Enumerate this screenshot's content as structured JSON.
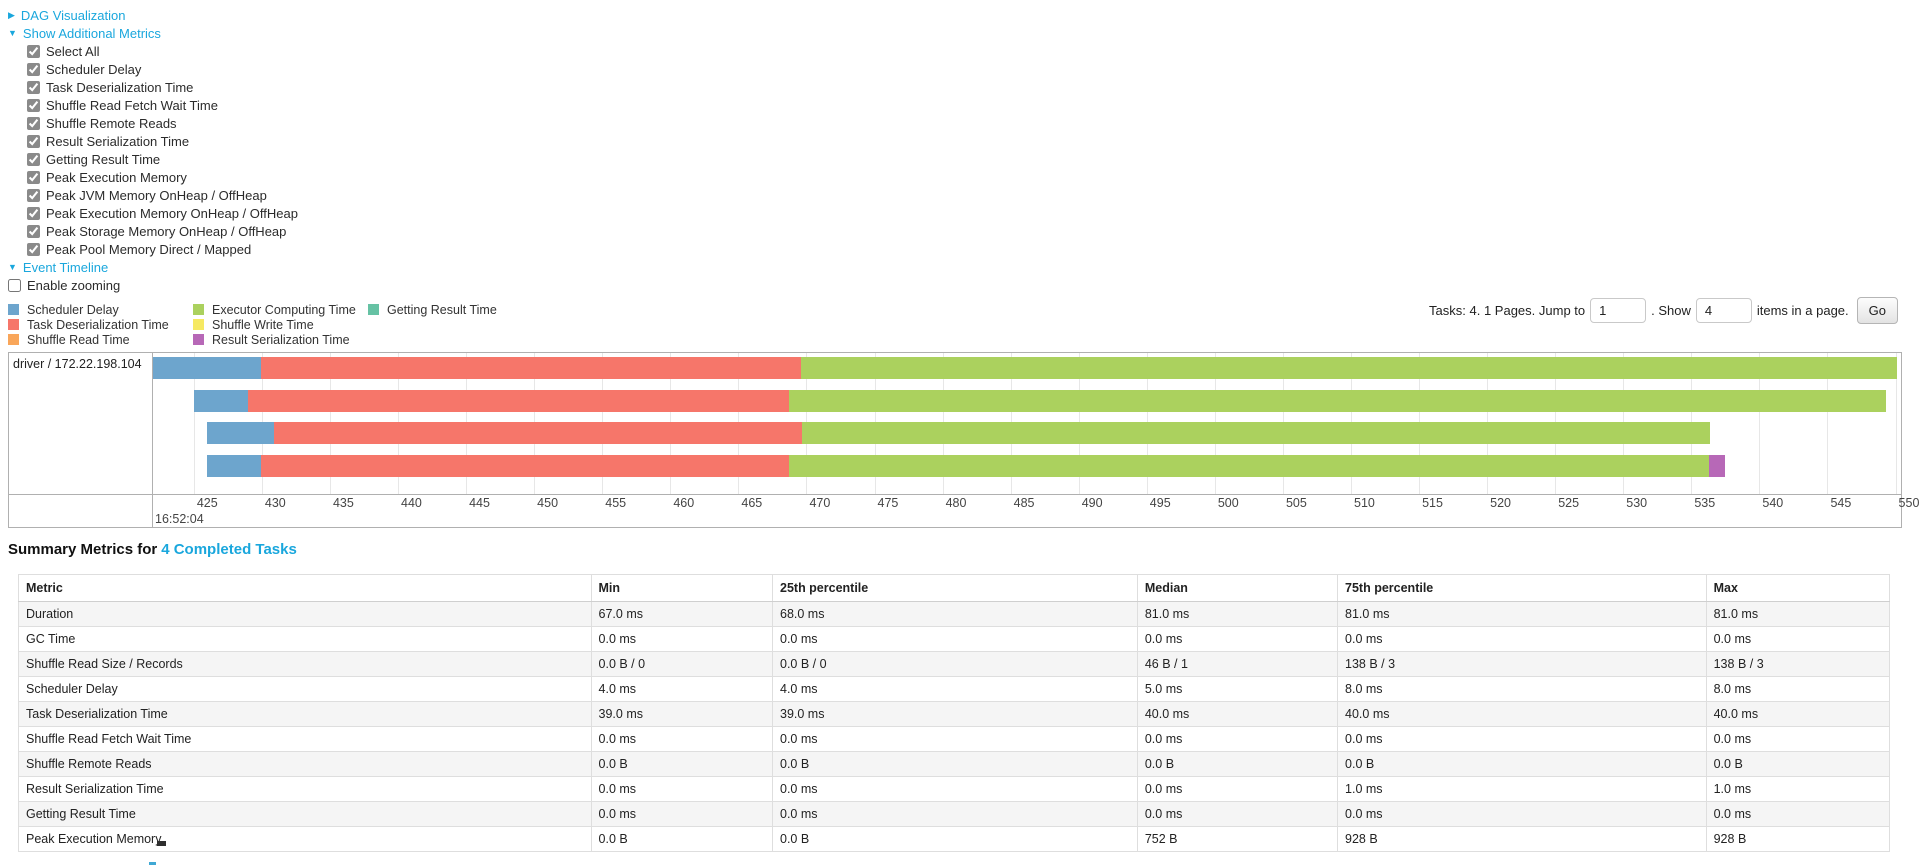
{
  "theme": {
    "link_color": "#1aa7dd",
    "text_color": "#222222",
    "stripe_color": "#f5f5f5",
    "border_color": "#b0b0b0"
  },
  "controls": {
    "dag_link": {
      "label": "DAG Visualization",
      "arrow": "▶",
      "state": "collapsed"
    },
    "metrics_link": {
      "label": "Show Additional Metrics",
      "arrow": "▼",
      "state": "expanded"
    },
    "metric_checkboxes": [
      "Select All",
      "Scheduler Delay",
      "Task Deserialization Time",
      "Shuffle Read Fetch Wait Time",
      "Shuffle Remote Reads",
      "Result Serialization Time",
      "Getting Result Time",
      "Peak Execution Memory",
      "Peak JVM Memory OnHeap / OffHeap",
      "Peak Execution Memory OnHeap / OffHeap",
      "Peak Storage Memory OnHeap / OffHeap",
      "Peak Pool Memory Direct / Mapped"
    ],
    "metric_checkboxes_checked": true,
    "timeline_link": {
      "label": "Event Timeline",
      "arrow": "▼",
      "state": "expanded"
    },
    "enable_zooming": {
      "label": "Enable zooming",
      "checked": false
    }
  },
  "legend": {
    "columns": [
      {
        "items": [
          {
            "key": "scheduler_delay",
            "label": "Scheduler Delay"
          },
          {
            "key": "task_deserialization",
            "label": "Task Deserialization Time"
          },
          {
            "key": "shuffle_read",
            "label": "Shuffle Read Time"
          }
        ]
      },
      {
        "items": [
          {
            "key": "executor_computing",
            "label": "Executor Computing Time"
          },
          {
            "key": "shuffle_write",
            "label": "Shuffle Write Time"
          },
          {
            "key": "result_serialization",
            "label": "Result Serialization Time"
          }
        ]
      },
      {
        "items": [
          {
            "key": "getting_result",
            "label": "Getting Result Time"
          }
        ]
      }
    ]
  },
  "pagination": {
    "summary": "Tasks: 4. 1 Pages. Jump to",
    "jump_value": "1",
    "mid": ". Show",
    "show_value": "4",
    "suffix": "items in a page.",
    "go_label": "Go"
  },
  "chart_data": {
    "type": "timeline",
    "group_label": "driver / 172.22.198.104",
    "x_axis": {
      "domain": [
        422,
        550.4
      ],
      "tick_start": 425,
      "tick_end": 550,
      "tick_step": 5,
      "time_label": "16:52:04",
      "units": "ms within second shown"
    },
    "colors": {
      "scheduler_delay": "#6da5cd",
      "task_deserialization": "#f6766a",
      "shuffle_read": "#f9a65a",
      "executor_computing": "#abd15e",
      "shuffle_write": "#f6e962",
      "result_serialization": "#b768b7",
      "getting_result": "#66c2a4"
    },
    "tasks": [
      {
        "segments": [
          {
            "type": "scheduler_delay",
            "start": 422.0,
            "end": 429.9
          },
          {
            "type": "task_deserialization",
            "start": 429.9,
            "end": 469.6
          },
          {
            "type": "executor_computing",
            "start": 469.6,
            "end": 550.1
          }
        ]
      },
      {
        "segments": [
          {
            "type": "scheduler_delay",
            "start": 425.0,
            "end": 429.0
          },
          {
            "type": "task_deserialization",
            "start": 429.0,
            "end": 468.7
          },
          {
            "type": "executor_computing",
            "start": 468.7,
            "end": 549.3
          }
        ]
      },
      {
        "segments": [
          {
            "type": "scheduler_delay",
            "start": 426.0,
            "end": 430.9
          },
          {
            "type": "task_deserialization",
            "start": 430.9,
            "end": 469.7
          },
          {
            "type": "executor_computing",
            "start": 469.7,
            "end": 536.4
          }
        ]
      },
      {
        "segments": [
          {
            "type": "scheduler_delay",
            "start": 426.0,
            "end": 429.9
          },
          {
            "type": "task_deserialization",
            "start": 429.9,
            "end": 468.7
          },
          {
            "type": "executor_computing",
            "start": 468.7,
            "end": 536.3
          },
          {
            "type": "result_serialization",
            "start": 536.3,
            "end": 537.5
          }
        ]
      }
    ]
  },
  "summary": {
    "title_prefix": "Summary Metrics for",
    "title_link": "4 Completed Tasks"
  },
  "table": {
    "headers": [
      "Metric",
      "Min",
      "25th percentile",
      "Median",
      "75th percentile",
      "Max"
    ],
    "rows": [
      [
        "Duration",
        "67.0 ms",
        "68.0 ms",
        "81.0 ms",
        "81.0 ms",
        "81.0 ms"
      ],
      [
        "GC Time",
        "0.0 ms",
        "0.0 ms",
        "0.0 ms",
        "0.0 ms",
        "0.0 ms"
      ],
      [
        "Shuffle Read Size / Records",
        "0.0 B / 0",
        "0.0 B / 0",
        "46 B / 1",
        "138 B / 3",
        "138 B / 3"
      ],
      [
        "Scheduler Delay",
        "4.0 ms",
        "4.0 ms",
        "5.0 ms",
        "8.0 ms",
        "8.0 ms"
      ],
      [
        "Task Deserialization Time",
        "39.0 ms",
        "39.0 ms",
        "40.0 ms",
        "40.0 ms",
        "40.0 ms"
      ],
      [
        "Shuffle Read Fetch Wait Time",
        "0.0 ms",
        "0.0 ms",
        "0.0 ms",
        "0.0 ms",
        "0.0 ms"
      ],
      [
        "Shuffle Remote Reads",
        "0.0 B",
        "0.0 B",
        "0.0 B",
        "0.0 B",
        "0.0 B"
      ],
      [
        "Result Serialization Time",
        "0.0 ms",
        "0.0 ms",
        "0.0 ms",
        "1.0 ms",
        "1.0 ms"
      ],
      [
        "Getting Result Time",
        "0.0 ms",
        "0.0 ms",
        "0.0 ms",
        "0.0 ms",
        "0.0 ms"
      ],
      [
        "Peak Execution Memory",
        "0.0 B",
        "0.0 B",
        "752 B",
        "928 B",
        "928 B"
      ]
    ]
  }
}
